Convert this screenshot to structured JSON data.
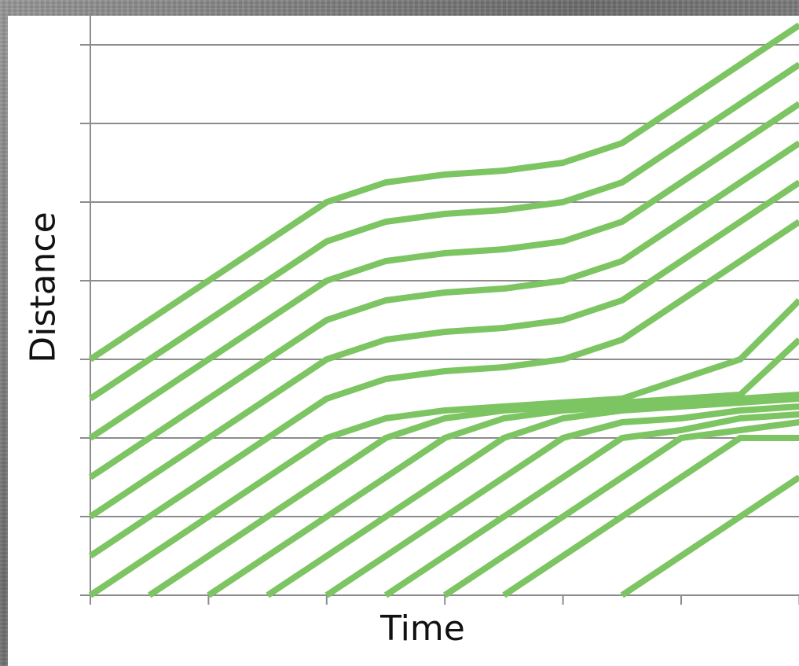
{
  "chart_data": {
    "type": "line",
    "title": "",
    "xlabel": "Time",
    "ylabel": "Distance",
    "xlim": [
      0,
      12
    ],
    "ylim": [
      0,
      7
    ],
    "x_ticks": 6,
    "y_gridlines": 7,
    "grid": "horizontal",
    "legend": "none",
    "line_color": "#7dc462",
    "series": [
      {
        "x": [
          0,
          4,
          5,
          6,
          7,
          8,
          9,
          12
        ],
        "y": [
          3.0,
          5.0,
          5.25,
          5.35,
          5.4,
          5.5,
          5.75,
          7.25
        ]
      },
      {
        "x": [
          0,
          4,
          5,
          6,
          7,
          8,
          9,
          12
        ],
        "y": [
          2.5,
          4.5,
          4.75,
          4.85,
          4.9,
          5.0,
          5.25,
          6.75
        ]
      },
      {
        "x": [
          0,
          4,
          5,
          6,
          7,
          8,
          9,
          12
        ],
        "y": [
          2.0,
          4.0,
          4.25,
          4.35,
          4.4,
          4.5,
          4.75,
          6.25
        ]
      },
      {
        "x": [
          0,
          4,
          5,
          6,
          7,
          8,
          9,
          12
        ],
        "y": [
          1.5,
          3.5,
          3.75,
          3.85,
          3.9,
          4.0,
          4.25,
          5.75
        ]
      },
      {
        "x": [
          0,
          4,
          5,
          6,
          7,
          8,
          9,
          12
        ],
        "y": [
          1.0,
          3.0,
          3.25,
          3.35,
          3.4,
          3.5,
          3.75,
          5.25
        ]
      },
      {
        "x": [
          0,
          4,
          5,
          6,
          7,
          8,
          9,
          12
        ],
        "y": [
          0.5,
          2.5,
          2.75,
          2.85,
          2.9,
          3.0,
          3.25,
          4.75
        ]
      },
      {
        "x": [
          0,
          4,
          5,
          6,
          7,
          8,
          9,
          10,
          11,
          12
        ],
        "y": [
          0.0,
          2.0,
          2.25,
          2.35,
          2.4,
          2.45,
          2.5,
          2.75,
          3.0,
          3.75
        ]
      },
      {
        "x": [
          1,
          5,
          6,
          7,
          8,
          9,
          10,
          11,
          12
        ],
        "y": [
          0.0,
          2.0,
          2.25,
          2.35,
          2.4,
          2.45,
          2.5,
          2.55,
          3.25
        ]
      },
      {
        "x": [
          2,
          6,
          7,
          8,
          9,
          10,
          11,
          12
        ],
        "y": [
          0.0,
          2.0,
          2.25,
          2.35,
          2.4,
          2.45,
          2.5,
          2.55
        ]
      },
      {
        "x": [
          3,
          7,
          8,
          9,
          10,
          11,
          12
        ],
        "y": [
          0.0,
          2.0,
          2.25,
          2.35,
          2.4,
          2.45,
          2.5
        ]
      },
      {
        "x": [
          4,
          8,
          9,
          10,
          11,
          12
        ],
        "y": [
          0.0,
          2.0,
          2.2,
          2.25,
          2.35,
          2.4
        ]
      },
      {
        "x": [
          5,
          9,
          10,
          11,
          12
        ],
        "y": [
          0.0,
          2.0,
          2.1,
          2.25,
          2.3
        ]
      },
      {
        "x": [
          6,
          10,
          11,
          12
        ],
        "y": [
          0.0,
          2.0,
          2.1,
          2.2
        ]
      },
      {
        "x": [
          7,
          11,
          12
        ],
        "y": [
          0.0,
          2.0,
          2.0
        ]
      },
      {
        "x": [
          9,
          12
        ],
        "y": [
          0.0,
          1.5
        ]
      }
    ]
  }
}
